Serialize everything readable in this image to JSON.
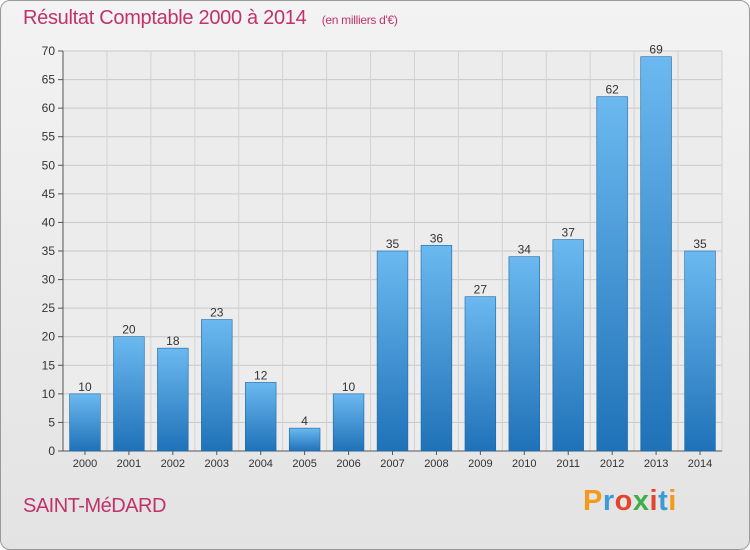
{
  "title": "Résultat Comptable 2000 à 2014",
  "subtitle": "(en milliers d'€)",
  "city": "SAINT-MéDARD",
  "brand": {
    "text": "Proxiti",
    "colors": [
      "#f39a1a",
      "#3d9ad6",
      "#e2452b",
      "#3fae49",
      "#e2452b",
      "#3d9ad6",
      "#f39a1a"
    ]
  },
  "colors": {
    "bar_top": "#6cb9f0",
    "bar_bottom": "#1f72b8",
    "title": "#c0326a"
  },
  "chart_data": {
    "type": "bar",
    "categories": [
      "2000",
      "2001",
      "2002",
      "2003",
      "2004",
      "2005",
      "2006",
      "2007",
      "2008",
      "2009",
      "2010",
      "2011",
      "2012",
      "2013",
      "2014"
    ],
    "values": [
      10,
      20,
      18,
      23,
      12,
      4,
      10,
      35,
      36,
      27,
      34,
      37,
      62,
      69,
      35
    ],
    "ylim": [
      0,
      70
    ],
    "yticks": [
      0,
      5,
      10,
      15,
      20,
      25,
      30,
      35,
      40,
      45,
      50,
      55,
      60,
      65,
      70
    ],
    "grid": true
  }
}
